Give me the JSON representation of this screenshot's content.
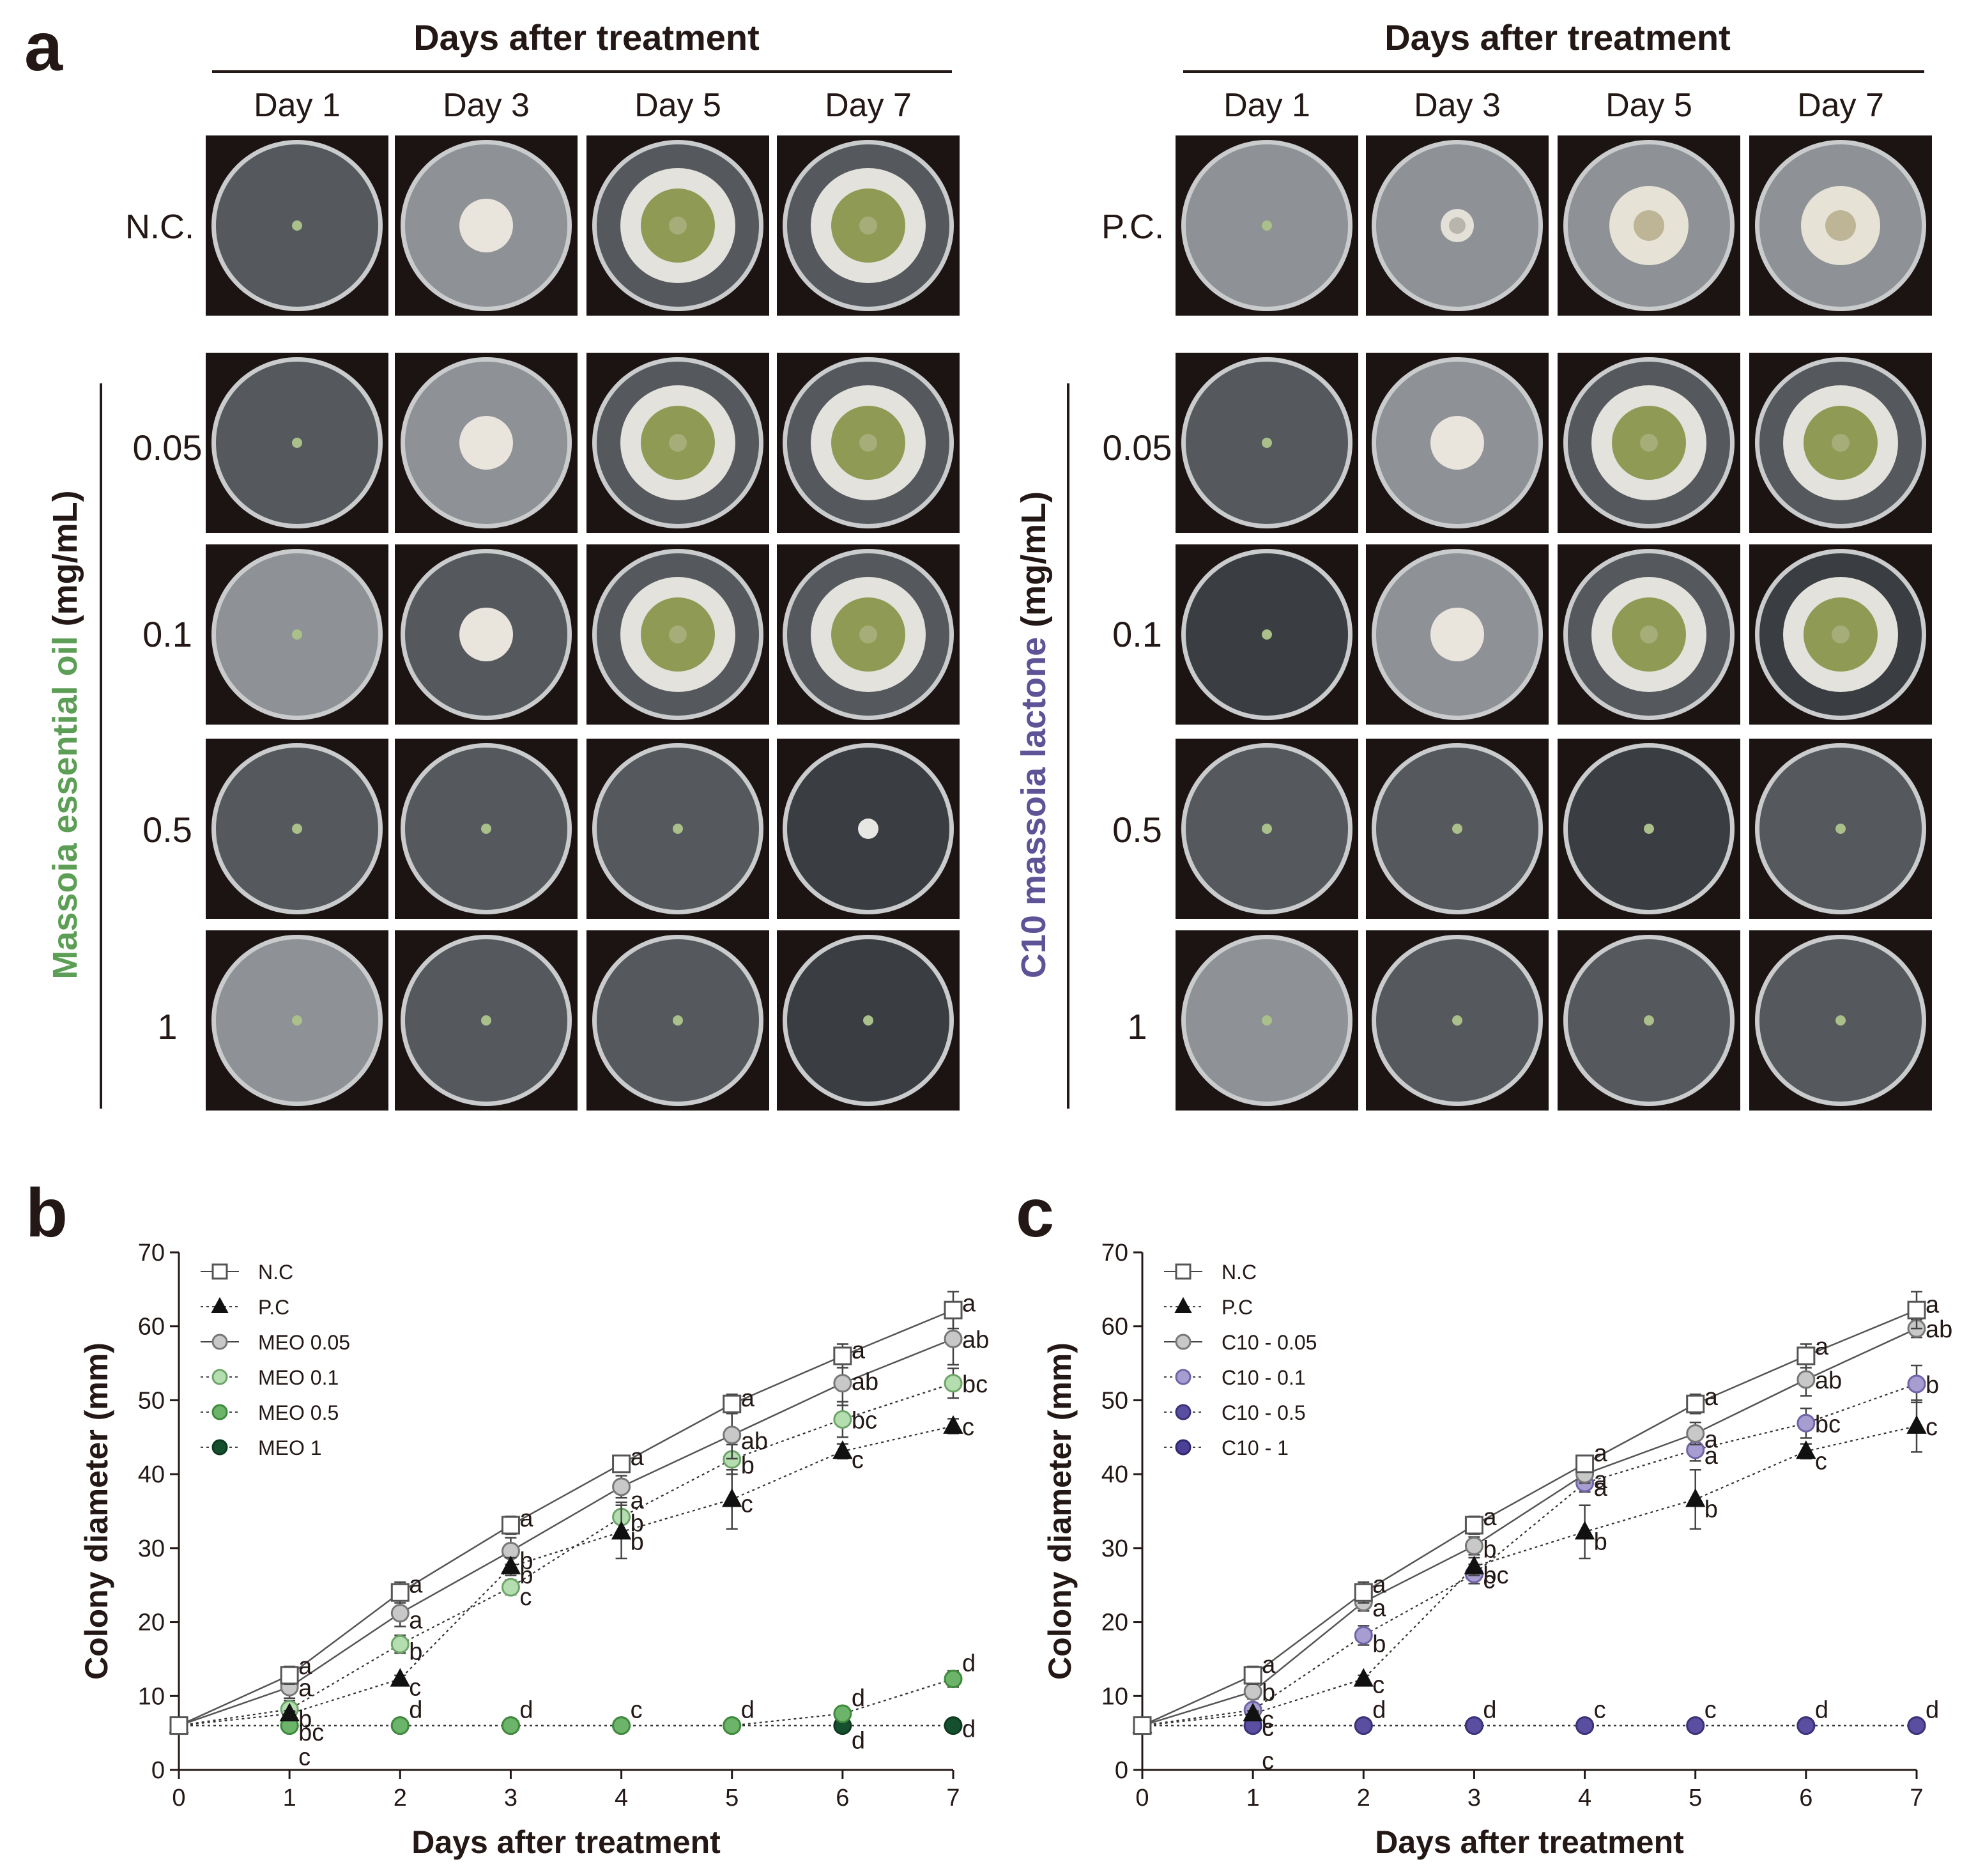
{
  "panel_a": {
    "letter": "a",
    "header": "Days after treatment",
    "days": [
      "Day 1",
      "Day 3",
      "Day 5",
      "Day 7"
    ],
    "left": {
      "control_label": "N.C.",
      "side_prefix": "Massoia essential oil",
      "side_unit": " (mg/mL)",
      "side_prefix_color": "#5c9e56",
      "concentrations": [
        "0.05",
        "0.1",
        "0.5",
        "1"
      ]
    },
    "right": {
      "control_label": "P.C.",
      "side_prefix": "C10 massoia lactone",
      "side_unit": " (mg/mL)",
      "side_prefix_color": "#5d5396",
      "concentrations": [
        "0.05",
        "0.1",
        "0.5",
        "1"
      ]
    },
    "plates": {
      "left": [
        [
          {
            "kind": "seed",
            "tone": "dark"
          },
          {
            "kind": "white",
            "tone": "light"
          },
          {
            "kind": "green",
            "tone": "dark"
          },
          {
            "kind": "green",
            "tone": "dark"
          }
        ],
        [
          {
            "kind": "seed",
            "tone": "dark"
          },
          {
            "kind": "white",
            "tone": "light"
          },
          {
            "kind": "green",
            "tone": "dark"
          },
          {
            "kind": "green",
            "tone": "dark"
          }
        ],
        [
          {
            "kind": "seed",
            "tone": "light"
          },
          {
            "kind": "white",
            "tone": "dark"
          },
          {
            "kind": "green",
            "tone": "dark"
          },
          {
            "kind": "green",
            "tone": "dark"
          }
        ],
        [
          {
            "kind": "seed",
            "tone": "dark"
          },
          {
            "kind": "seed",
            "tone": "dark"
          },
          {
            "kind": "seed",
            "tone": "dark"
          },
          {
            "kind": "dot",
            "tone": "darker"
          }
        ],
        [
          {
            "kind": "seed",
            "tone": "light"
          },
          {
            "kind": "seed",
            "tone": "dark"
          },
          {
            "kind": "seed",
            "tone": "dark"
          },
          {
            "kind": "seed",
            "tone": "darker"
          }
        ]
      ],
      "right": [
        [
          {
            "kind": "seed",
            "tone": "light"
          },
          {
            "kind": "ring",
            "tone": "light"
          },
          {
            "kind": "pale",
            "tone": "light"
          },
          {
            "kind": "pale",
            "tone": "light"
          }
        ],
        [
          {
            "kind": "seed",
            "tone": "dark"
          },
          {
            "kind": "white",
            "tone": "light"
          },
          {
            "kind": "green",
            "tone": "dark"
          },
          {
            "kind": "green",
            "tone": "dark"
          }
        ],
        [
          {
            "kind": "seed",
            "tone": "darker"
          },
          {
            "kind": "white",
            "tone": "light"
          },
          {
            "kind": "green",
            "tone": "dark"
          },
          {
            "kind": "green",
            "tone": "darker"
          }
        ],
        [
          {
            "kind": "seed",
            "tone": "dark"
          },
          {
            "kind": "seed",
            "tone": "dark"
          },
          {
            "kind": "seed",
            "tone": "darker"
          },
          {
            "kind": "seed",
            "tone": "dark"
          }
        ],
        [
          {
            "kind": "seed",
            "tone": "light"
          },
          {
            "kind": "seed",
            "tone": "dark"
          },
          {
            "kind": "seed",
            "tone": "dark"
          },
          {
            "kind": "seed",
            "tone": "dark"
          }
        ]
      ]
    }
  },
  "chart_data": [
    {
      "panel": "b",
      "type": "line",
      "xlabel": "Days after treatment",
      "ylabel": "Colony diameter (mm)",
      "x": [
        0,
        1,
        2,
        3,
        4,
        5,
        6,
        7
      ],
      "xlim": [
        0,
        7
      ],
      "ylim": [
        0,
        70
      ],
      "yticks": [
        0,
        10,
        20,
        30,
        40,
        50,
        60,
        70
      ],
      "legend_position": "top-left",
      "series": [
        {
          "name": "N.C",
          "marker": "square-open",
          "fill": "#ffffff",
          "stroke": "#555555",
          "line": "solid",
          "values": [
            6,
            12.8,
            24.0,
            33.1,
            41.4,
            49.5,
            56.0,
            62.2
          ],
          "err": [
            0.5,
            1.2,
            1.4,
            1.2,
            1.0,
            1.3,
            1.6,
            2.5
          ],
          "letters": [
            "",
            "a",
            "a",
            "a",
            "a",
            "a",
            "a",
            "a"
          ]
        },
        {
          "name": "P.C",
          "marker": "triangle",
          "fill": "#111111",
          "stroke": "#111111",
          "line": "dotted",
          "values": [
            6,
            7.6,
            12.3,
            27.5,
            32.2,
            36.6,
            43.1,
            46.5
          ],
          "err": [
            0.3,
            0.4,
            0.5,
            1.2,
            3.6,
            4.0,
            1.0,
            1.0
          ],
          "letters": [
            "",
            "bc",
            "c",
            "b",
            "b",
            "c",
            "c",
            "c"
          ]
        },
        {
          "name": "MEO 0.05",
          "marker": "circle",
          "fill": "#c8c8c8",
          "stroke": "#777777",
          "line": "solid",
          "values": [
            6,
            11.2,
            21.2,
            29.6,
            38.3,
            45.3,
            52.3,
            58.3
          ],
          "err": [
            0.4,
            1.5,
            1.8,
            1.8,
            1.5,
            3.2,
            3.0,
            3.5
          ],
          "letters": [
            "",
            "a",
            "a",
            "b",
            "a",
            "ab",
            "ab",
            "ab"
          ]
        },
        {
          "name": "MEO 0.1",
          "marker": "circle",
          "fill": "#b5deb0",
          "stroke": "#6da468",
          "line": "dotted",
          "values": [
            6,
            8.2,
            17.0,
            24.7,
            34.2,
            42.0,
            47.4,
            52.3
          ],
          "err": [
            0.3,
            1.2,
            1.2,
            1.0,
            2.0,
            2.0,
            2.4,
            2.0
          ],
          "letters": [
            "",
            "b",
            "b",
            "c",
            "b",
            "b",
            "bc",
            "bc"
          ]
        },
        {
          "name": "MEO 0.5",
          "marker": "circle",
          "fill": "#6cb46a",
          "stroke": "#3f8a3c",
          "line": "dotted",
          "values": [
            6,
            6,
            6,
            6,
            6,
            6,
            7.6,
            12.3
          ],
          "err": [
            0,
            0,
            0,
            0,
            0,
            0,
            0.5,
            1.1
          ],
          "letters": [
            "",
            "c",
            "d",
            "d",
            "c",
            "d",
            "d",
            "d"
          ]
        },
        {
          "name": "MEO 1",
          "marker": "circle",
          "fill": "#15502e",
          "stroke": "#0e3a20",
          "line": "dotted",
          "values": [
            6,
            6,
            6,
            6,
            6,
            6,
            6,
            6
          ],
          "err": [
            0,
            0,
            0,
            0,
            0,
            0,
            0,
            0
          ],
          "letters": [
            "",
            "",
            "",
            "",
            "",
            "",
            "d",
            "d"
          ]
        }
      ]
    },
    {
      "panel": "c",
      "type": "line",
      "xlabel": "Days after treatment",
      "ylabel": "Colony diameter (mm)",
      "x": [
        0,
        1,
        2,
        3,
        4,
        5,
        6,
        7
      ],
      "xlim": [
        0,
        7
      ],
      "ylim": [
        0,
        70
      ],
      "yticks": [
        0,
        10,
        20,
        30,
        40,
        50,
        60,
        70
      ],
      "legend_position": "top-left",
      "series": [
        {
          "name": "N.C",
          "marker": "square-open",
          "fill": "#ffffff",
          "stroke": "#555555",
          "line": "solid",
          "values": [
            6,
            12.8,
            24.0,
            33.1,
            41.4,
            49.5,
            56.0,
            62.2
          ],
          "err": [
            0.5,
            1.2,
            1.4,
            1.2,
            1.0,
            1.3,
            1.6,
            2.5
          ],
          "letters": [
            "",
            "a",
            "a",
            "a",
            "a",
            "a",
            "a",
            "a"
          ]
        },
        {
          "name": "P.C",
          "marker": "triangle",
          "fill": "#111111",
          "stroke": "#111111",
          "line": "dotted",
          "values": [
            6,
            7.6,
            12.3,
            27.5,
            32.2,
            36.6,
            43.1,
            46.5
          ],
          "err": [
            0.3,
            0.4,
            0.5,
            1.2,
            3.6,
            4.0,
            1.0,
            3.5
          ],
          "letters": [
            "",
            "c",
            "c",
            "bc",
            "b",
            "b",
            "c",
            "c"
          ]
        },
        {
          "name": "C10 - 0.05",
          "marker": "circle",
          "fill": "#c8c8c8",
          "stroke": "#777777",
          "line": "solid",
          "values": [
            6,
            10.6,
            22.7,
            30.3,
            40.0,
            45.5,
            52.8,
            59.7
          ],
          "err": [
            0.4,
            1.0,
            1.2,
            1.2,
            1.2,
            1.5,
            2.2,
            1.2
          ],
          "letters": [
            "",
            "b",
            "a",
            "b",
            "a",
            "a",
            "ab",
            "ab"
          ]
        },
        {
          "name": "C10 - 0.1",
          "marker": "circle",
          "fill": "#a79dd0",
          "stroke": "#6f64a8",
          "line": "dotted",
          "values": [
            6,
            8.1,
            18.2,
            26.5,
            38.8,
            43.3,
            46.9,
            52.2
          ],
          "err": [
            0.3,
            0.8,
            1.3,
            1.3,
            1.2,
            1.5,
            2.0,
            2.5
          ],
          "letters": [
            "",
            "c",
            "b",
            "c",
            "a",
            "a",
            "bc",
            "b"
          ]
        },
        {
          "name": "C10 - 0.5",
          "marker": "circle",
          "fill": "#5a4ea0",
          "stroke": "#3b3279",
          "line": "dotted",
          "values": [
            6,
            6,
            6,
            6,
            6,
            6,
            6,
            6
          ],
          "err": [
            0,
            0,
            0,
            0,
            0,
            0,
            0,
            0
          ],
          "letters": [
            "",
            "c",
            "d",
            "d",
            "c",
            "c",
            "d",
            "d"
          ]
        },
        {
          "name": "C10 - 1",
          "marker": "circle",
          "fill": "#4c4196",
          "stroke": "#302770",
          "line": "dotted",
          "values": [
            6,
            6,
            6,
            6,
            6,
            6,
            6,
            6
          ],
          "err": [
            0,
            0,
            0,
            0,
            0,
            0,
            0,
            0
          ],
          "letters": [
            "",
            "",
            "",
            "",
            "",
            "",
            "",
            ""
          ]
        }
      ]
    }
  ]
}
